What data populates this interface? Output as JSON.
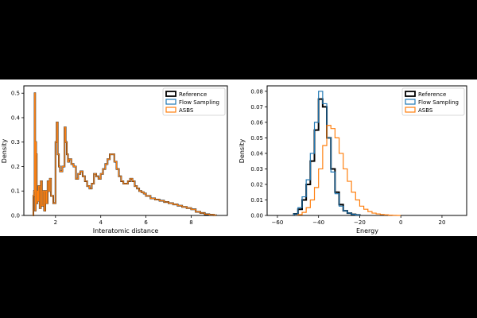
{
  "figure": {
    "background": "#ffffff",
    "frame": "#000000"
  },
  "colors": {
    "reference": "#000000",
    "flow": "#1f77b4",
    "asbs": "#ff7f0e"
  },
  "chart_data": [
    {
      "type": "line",
      "title": "",
      "xlabel": "Interatomic distance",
      "ylabel": "Density",
      "xlim": [
        0.6,
        9.6
      ],
      "ylim": [
        0,
        0.53
      ],
      "xticks": [
        2,
        4,
        6,
        8
      ],
      "yticks": [
        0.0,
        0.1,
        0.2,
        0.3,
        0.4,
        0.5
      ],
      "xtick_labels": [
        "2",
        "4",
        "6",
        "8"
      ],
      "ytick_labels": [
        "0.0",
        "0.1",
        "0.2",
        "0.3",
        "0.4",
        "0.5"
      ],
      "grid": false,
      "legend_position": "top-right",
      "step": true,
      "series": [
        {
          "name": "Reference",
          "color": "#000000",
          "x": [
            1.0,
            1.02,
            1.05,
            1.08,
            1.1,
            1.12,
            1.14,
            1.17,
            1.2,
            1.22,
            1.25,
            1.3,
            1.35,
            1.4,
            1.45,
            1.5,
            1.55,
            1.6,
            1.65,
            1.7,
            1.75,
            1.8,
            1.9,
            2.0,
            2.05,
            2.1,
            2.15,
            2.2,
            2.3,
            2.4,
            2.45,
            2.5,
            2.55,
            2.6,
            2.7,
            2.8,
            2.9,
            3.0,
            3.1,
            3.2,
            3.3,
            3.4,
            3.5,
            3.6,
            3.7,
            3.8,
            3.9,
            4.0,
            4.1,
            4.2,
            4.3,
            4.4,
            4.5,
            4.6,
            4.7,
            4.8,
            4.9,
            5.0,
            5.1,
            5.2,
            5.3,
            5.4,
            5.5,
            5.6,
            5.7,
            5.8,
            5.9,
            6.0,
            6.2,
            6.4,
            6.6,
            6.8,
            7.0,
            7.2,
            7.4,
            7.6,
            7.8,
            8.0,
            8.2,
            8.4,
            8.6,
            8.8,
            9.0,
            9.1
          ],
          "y": [
            0.0,
            0.08,
            0.1,
            0.5,
            0.02,
            0.3,
            0.25,
            0.05,
            0.1,
            0.06,
            0.12,
            0.03,
            0.14,
            0.04,
            0.1,
            0.02,
            0.1,
            0.05,
            0.14,
            0.1,
            0.15,
            0.08,
            0.05,
            0.3,
            0.38,
            0.25,
            0.2,
            0.18,
            0.2,
            0.36,
            0.3,
            0.25,
            0.22,
            0.23,
            0.21,
            0.2,
            0.15,
            0.17,
            0.18,
            0.16,
            0.14,
            0.12,
            0.11,
            0.13,
            0.17,
            0.16,
            0.15,
            0.17,
            0.19,
            0.21,
            0.23,
            0.25,
            0.25,
            0.22,
            0.19,
            0.16,
            0.14,
            0.13,
            0.13,
            0.14,
            0.15,
            0.14,
            0.12,
            0.11,
            0.1,
            0.095,
            0.09,
            0.08,
            0.07,
            0.065,
            0.06,
            0.055,
            0.05,
            0.045,
            0.04,
            0.035,
            0.03,
            0.025,
            0.015,
            0.01,
            0.005,
            0.003,
            0.001,
            0.0
          ]
        },
        {
          "name": "Flow Sampling",
          "color": "#1f77b4",
          "x": [
            1.0,
            1.02,
            1.05,
            1.08,
            1.1,
            1.12,
            1.14,
            1.17,
            1.2,
            1.22,
            1.25,
            1.3,
            1.35,
            1.4,
            1.45,
            1.5,
            1.55,
            1.6,
            1.65,
            1.7,
            1.75,
            1.8,
            1.9,
            2.0,
            2.05,
            2.1,
            2.15,
            2.2,
            2.3,
            2.4,
            2.45,
            2.5,
            2.55,
            2.6,
            2.7,
            2.8,
            2.9,
            3.0,
            3.1,
            3.2,
            3.3,
            3.4,
            3.5,
            3.6,
            3.7,
            3.8,
            3.9,
            4.0,
            4.1,
            4.2,
            4.3,
            4.4,
            4.5,
            4.6,
            4.7,
            4.8,
            4.9,
            5.0,
            5.1,
            5.2,
            5.3,
            5.4,
            5.5,
            5.6,
            5.7,
            5.8,
            5.9,
            6.0,
            6.2,
            6.4,
            6.6,
            6.8,
            7.0,
            7.2,
            7.4,
            7.6,
            7.8,
            8.0,
            8.2,
            8.4,
            8.6,
            8.8,
            9.0,
            9.1
          ],
          "y": [
            0.0,
            0.08,
            0.1,
            0.5,
            0.02,
            0.3,
            0.25,
            0.05,
            0.1,
            0.06,
            0.12,
            0.03,
            0.14,
            0.04,
            0.1,
            0.02,
            0.1,
            0.05,
            0.14,
            0.1,
            0.15,
            0.08,
            0.05,
            0.3,
            0.38,
            0.25,
            0.2,
            0.18,
            0.2,
            0.36,
            0.3,
            0.25,
            0.22,
            0.23,
            0.21,
            0.2,
            0.15,
            0.17,
            0.18,
            0.16,
            0.14,
            0.12,
            0.11,
            0.13,
            0.17,
            0.16,
            0.15,
            0.17,
            0.19,
            0.21,
            0.23,
            0.25,
            0.25,
            0.22,
            0.19,
            0.16,
            0.14,
            0.13,
            0.13,
            0.14,
            0.15,
            0.14,
            0.12,
            0.11,
            0.1,
            0.095,
            0.09,
            0.08,
            0.07,
            0.065,
            0.06,
            0.055,
            0.05,
            0.045,
            0.04,
            0.035,
            0.03,
            0.025,
            0.015,
            0.01,
            0.005,
            0.003,
            0.001,
            0.0
          ]
        },
        {
          "name": "ASBS",
          "color": "#ff7f0e",
          "x": [
            1.0,
            1.02,
            1.05,
            1.08,
            1.1,
            1.12,
            1.14,
            1.17,
            1.2,
            1.22,
            1.25,
            1.3,
            1.35,
            1.4,
            1.45,
            1.5,
            1.55,
            1.6,
            1.65,
            1.7,
            1.75,
            1.8,
            1.9,
            2.0,
            2.05,
            2.1,
            2.15,
            2.2,
            2.3,
            2.4,
            2.45,
            2.5,
            2.55,
            2.6,
            2.7,
            2.8,
            2.9,
            3.0,
            3.1,
            3.2,
            3.3,
            3.4,
            3.5,
            3.6,
            3.7,
            3.8,
            3.9,
            4.0,
            4.1,
            4.2,
            4.3,
            4.4,
            4.5,
            4.6,
            4.7,
            4.8,
            4.9,
            5.0,
            5.1,
            5.2,
            5.3,
            5.4,
            5.5,
            5.6,
            5.7,
            5.8,
            5.9,
            6.0,
            6.2,
            6.4,
            6.6,
            6.8,
            7.0,
            7.2,
            7.4,
            7.6,
            7.8,
            8.0,
            8.2,
            8.4,
            8.6,
            8.8,
            9.0,
            9.1
          ],
          "y": [
            0.0,
            0.08,
            0.1,
            0.5,
            0.02,
            0.3,
            0.25,
            0.05,
            0.1,
            0.06,
            0.12,
            0.03,
            0.14,
            0.04,
            0.1,
            0.02,
            0.1,
            0.05,
            0.14,
            0.1,
            0.15,
            0.08,
            0.05,
            0.3,
            0.38,
            0.25,
            0.2,
            0.18,
            0.2,
            0.36,
            0.3,
            0.25,
            0.22,
            0.23,
            0.21,
            0.2,
            0.15,
            0.17,
            0.18,
            0.16,
            0.14,
            0.12,
            0.11,
            0.13,
            0.17,
            0.16,
            0.15,
            0.17,
            0.19,
            0.21,
            0.23,
            0.25,
            0.25,
            0.22,
            0.19,
            0.16,
            0.14,
            0.13,
            0.13,
            0.14,
            0.15,
            0.14,
            0.12,
            0.11,
            0.1,
            0.095,
            0.09,
            0.08,
            0.07,
            0.065,
            0.06,
            0.055,
            0.05,
            0.045,
            0.04,
            0.035,
            0.03,
            0.025,
            0.015,
            0.01,
            0.005,
            0.003,
            0.001,
            0.0
          ]
        }
      ]
    },
    {
      "type": "line",
      "title": "",
      "xlabel": "Energy",
      "ylabel": "Density",
      "xlim": [
        -65,
        32
      ],
      "ylim": [
        0,
        0.0835
      ],
      "xticks": [
        -60,
        -40,
        -20,
        0,
        20
      ],
      "yticks": [
        0.0,
        0.01,
        0.02,
        0.03,
        0.04,
        0.05,
        0.06,
        0.07,
        0.08
      ],
      "xtick_labels": [
        "−60",
        "−40",
        "−20",
        "0",
        "20"
      ],
      "ytick_labels": [
        "0.00",
        "0.01",
        "0.02",
        "0.03",
        "0.04",
        "0.05",
        "0.06",
        "0.07",
        "0.08"
      ],
      "grid": false,
      "legend_position": "top-right",
      "step": true,
      "series": [
        {
          "name": "Reference",
          "color": "#000000",
          "x": [
            -52,
            -50,
            -48,
            -46,
            -44,
            -42,
            -40,
            -38,
            -36,
            -34,
            -32,
            -30,
            -28,
            -26,
            -24,
            -22,
            -20
          ],
          "y": [
            0.001,
            0.004,
            0.01,
            0.02,
            0.035,
            0.055,
            0.075,
            0.07,
            0.05,
            0.03,
            0.015,
            0.007,
            0.003,
            0.0015,
            0.0007,
            0.0003,
            0.0
          ]
        },
        {
          "name": "Flow Sampling",
          "color": "#1f77b4",
          "x": [
            -52,
            -50,
            -48,
            -46,
            -44,
            -42,
            -40,
            -38,
            -36,
            -34,
            -32,
            -30,
            -28,
            -26,
            -24,
            -22,
            -20
          ],
          "y": [
            0.001,
            0.005,
            0.012,
            0.023,
            0.04,
            0.06,
            0.08,
            0.072,
            0.05,
            0.028,
            0.014,
            0.006,
            0.003,
            0.0015,
            0.0007,
            0.0003,
            0.0
          ]
        },
        {
          "name": "ASBS",
          "color": "#ff7f0e",
          "x": [
            -50,
            -48,
            -46,
            -44,
            -42,
            -40,
            -38,
            -36,
            -34,
            -32,
            -30,
            -28,
            -26,
            -24,
            -22,
            -20,
            -18,
            -16,
            -14,
            -12,
            -10,
            -8,
            -6,
            -4,
            -2,
            0
          ],
          "y": [
            0.0005,
            0.002,
            0.005,
            0.01,
            0.018,
            0.03,
            0.045,
            0.058,
            0.056,
            0.05,
            0.04,
            0.03,
            0.022,
            0.015,
            0.01,
            0.006,
            0.004,
            0.0025,
            0.0015,
            0.001,
            0.0006,
            0.0004,
            0.0002,
            0.0001,
            0.0,
            0.0
          ]
        }
      ]
    }
  ]
}
